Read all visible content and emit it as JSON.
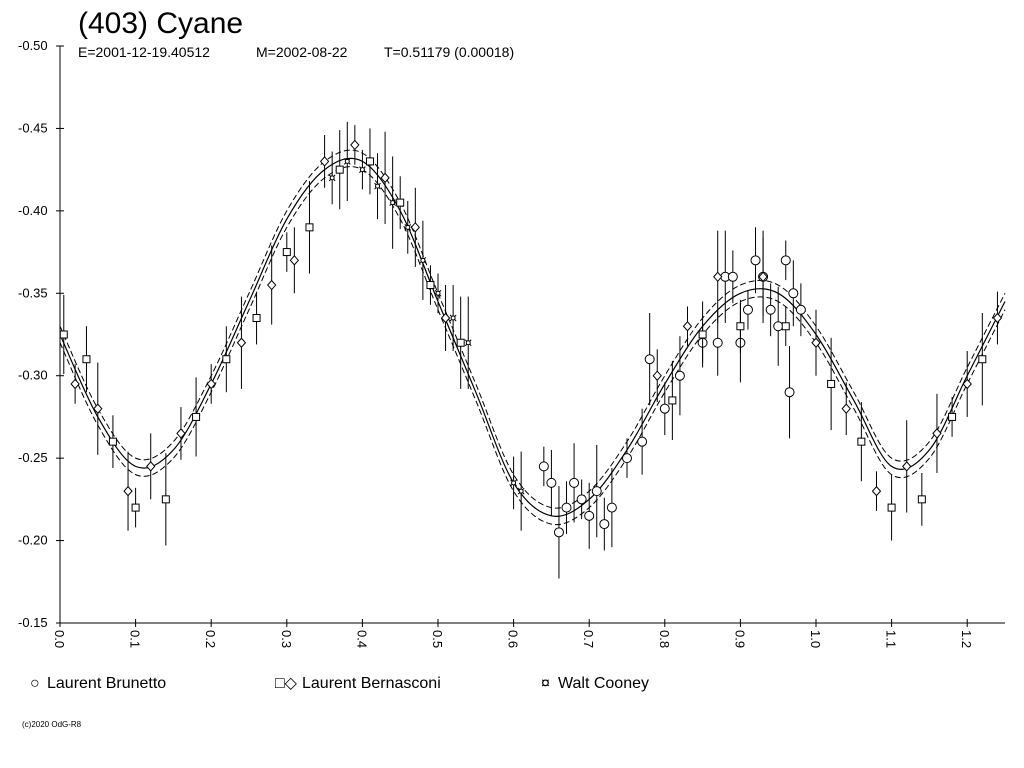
{
  "chart_data": {
    "type": "scatter",
    "title": "(403) Cyane",
    "subtitle": {
      "epoch": "E=2001-12-19.40512",
      "mid_date": "M=2002-08-22",
      "period": "T=0.51179 (0.00018)"
    },
    "xlabel": "",
    "ylabel": "",
    "xlim": [
      0.0,
      1.25
    ],
    "ylim": [
      -0.5,
      -0.15
    ],
    "y_inverted": true,
    "x_ticks": [
      "0.0",
      "0.1",
      "0.2",
      "0.3",
      "0.4",
      "0.5",
      "0.6",
      "0.7",
      "0.8",
      "0.9",
      "1.0",
      "1.1",
      "1.2"
    ],
    "y_ticks": [
      "-0.50",
      "-0.45",
      "-0.40",
      "-0.35",
      "-0.30",
      "-0.25",
      "-0.20",
      "-0.15"
    ],
    "grid": false,
    "legend_position": "bottom",
    "fit_curve": {
      "description": "",
      "points": [
        [
          0.0,
          -0.325
        ],
        [
          0.05,
          -0.275
        ],
        [
          0.1,
          -0.245
        ],
        [
          0.15,
          -0.255
        ],
        [
          0.2,
          -0.295
        ],
        [
          0.25,
          -0.345
        ],
        [
          0.3,
          -0.395
        ],
        [
          0.35,
          -0.425
        ],
        [
          0.4,
          -0.43
        ],
        [
          0.45,
          -0.4
        ],
        [
          0.5,
          -0.345
        ],
        [
          0.55,
          -0.29
        ],
        [
          0.6,
          -0.235
        ],
        [
          0.65,
          -0.215
        ],
        [
          0.7,
          -0.225
        ],
        [
          0.75,
          -0.255
        ],
        [
          0.8,
          -0.295
        ],
        [
          0.85,
          -0.33
        ],
        [
          0.9,
          -0.35
        ],
        [
          0.95,
          -0.35
        ],
        [
          1.0,
          -0.325
        ],
        [
          1.05,
          -0.285
        ],
        [
          1.1,
          -0.245
        ],
        [
          1.15,
          -0.255
        ],
        [
          1.2,
          -0.3
        ],
        [
          1.25,
          -0.345
        ]
      ],
      "band_offset": 0.005
    },
    "series": [
      {
        "name": "Laurent Brunetto",
        "marker": "circle",
        "points": [
          [
            0.64,
            -0.245
          ],
          [
            0.65,
            -0.235
          ],
          [
            0.66,
            -0.205
          ],
          [
            0.67,
            -0.22
          ],
          [
            0.68,
            -0.235
          ],
          [
            0.69,
            -0.225
          ],
          [
            0.7,
            -0.215
          ],
          [
            0.71,
            -0.23
          ],
          [
            0.72,
            -0.21
          ],
          [
            0.73,
            -0.22
          ],
          [
            0.75,
            -0.25
          ],
          [
            0.77,
            -0.26
          ],
          [
            0.78,
            -0.31
          ],
          [
            0.8,
            -0.28
          ],
          [
            0.82,
            -0.3
          ],
          [
            0.85,
            -0.32
          ],
          [
            0.87,
            -0.32
          ],
          [
            0.88,
            -0.36
          ],
          [
            0.89,
            -0.36
          ],
          [
            0.9,
            -0.32
          ],
          [
            0.91,
            -0.34
          ],
          [
            0.92,
            -0.37
          ],
          [
            0.93,
            -0.36
          ],
          [
            0.94,
            -0.34
          ],
          [
            0.95,
            -0.33
          ],
          [
            0.96,
            -0.37
          ],
          [
            0.97,
            -0.35
          ],
          [
            0.965,
            -0.29
          ],
          [
            0.98,
            -0.34
          ]
        ]
      },
      {
        "name": "Laurent Bernasconi",
        "marker": "square-diamond",
        "points": [
          [
            0.005,
            -0.325
          ],
          [
            0.02,
            -0.295
          ],
          [
            0.035,
            -0.31
          ],
          [
            0.05,
            -0.28
          ],
          [
            0.07,
            -0.26
          ],
          [
            0.09,
            -0.23
          ],
          [
            0.1,
            -0.22
          ],
          [
            0.12,
            -0.245
          ],
          [
            0.14,
            -0.225
          ],
          [
            0.16,
            -0.265
          ],
          [
            0.18,
            -0.275
          ],
          [
            0.2,
            -0.295
          ],
          [
            0.22,
            -0.31
          ],
          [
            0.24,
            -0.32
          ],
          [
            0.26,
            -0.335
          ],
          [
            0.28,
            -0.355
          ],
          [
            0.3,
            -0.375
          ],
          [
            0.31,
            -0.37
          ],
          [
            0.33,
            -0.39
          ],
          [
            0.35,
            -0.43
          ],
          [
            0.37,
            -0.425
          ],
          [
            0.39,
            -0.44
          ],
          [
            0.41,
            -0.43
          ],
          [
            0.43,
            -0.42
          ],
          [
            0.45,
            -0.405
          ],
          [
            0.47,
            -0.39
          ],
          [
            0.49,
            -0.355
          ],
          [
            0.51,
            -0.335
          ],
          [
            0.53,
            -0.32
          ],
          [
            0.79,
            -0.3
          ],
          [
            0.81,
            -0.285
          ],
          [
            0.83,
            -0.33
          ],
          [
            0.85,
            -0.325
          ],
          [
            0.87,
            -0.36
          ],
          [
            0.9,
            -0.33
          ],
          [
            0.93,
            -0.36
          ],
          [
            0.96,
            -0.33
          ],
          [
            1.0,
            -0.32
          ],
          [
            1.02,
            -0.295
          ],
          [
            1.04,
            -0.28
          ],
          [
            1.06,
            -0.26
          ],
          [
            1.08,
            -0.23
          ],
          [
            1.1,
            -0.22
          ],
          [
            1.12,
            -0.245
          ],
          [
            1.14,
            -0.225
          ],
          [
            1.16,
            -0.265
          ],
          [
            1.18,
            -0.275
          ],
          [
            1.2,
            -0.295
          ],
          [
            1.22,
            -0.31
          ],
          [
            1.24,
            -0.335
          ]
        ]
      },
      {
        "name": "Walt Cooney",
        "marker": "star",
        "points": [
          [
            0.36,
            -0.42
          ],
          [
            0.38,
            -0.43
          ],
          [
            0.4,
            -0.425
          ],
          [
            0.42,
            -0.415
          ],
          [
            0.44,
            -0.405
          ],
          [
            0.46,
            -0.39
          ],
          [
            0.48,
            -0.37
          ],
          [
            0.5,
            -0.35
          ],
          [
            0.52,
            -0.335
          ],
          [
            0.54,
            -0.32
          ],
          [
            0.6,
            -0.235
          ],
          [
            0.61,
            -0.23
          ]
        ]
      }
    ]
  },
  "legend": [
    {
      "label": "Laurent Brunetto",
      "symbols": "○"
    },
    {
      "label": "Laurent Bernasconi",
      "symbols": "□◇"
    },
    {
      "label": "Walt Cooney",
      "symbols": "¤"
    }
  ],
  "copyright": "(c)2020 OdG-R8",
  "colors": {
    "foreground": "#000000",
    "background": "#ffffff"
  }
}
